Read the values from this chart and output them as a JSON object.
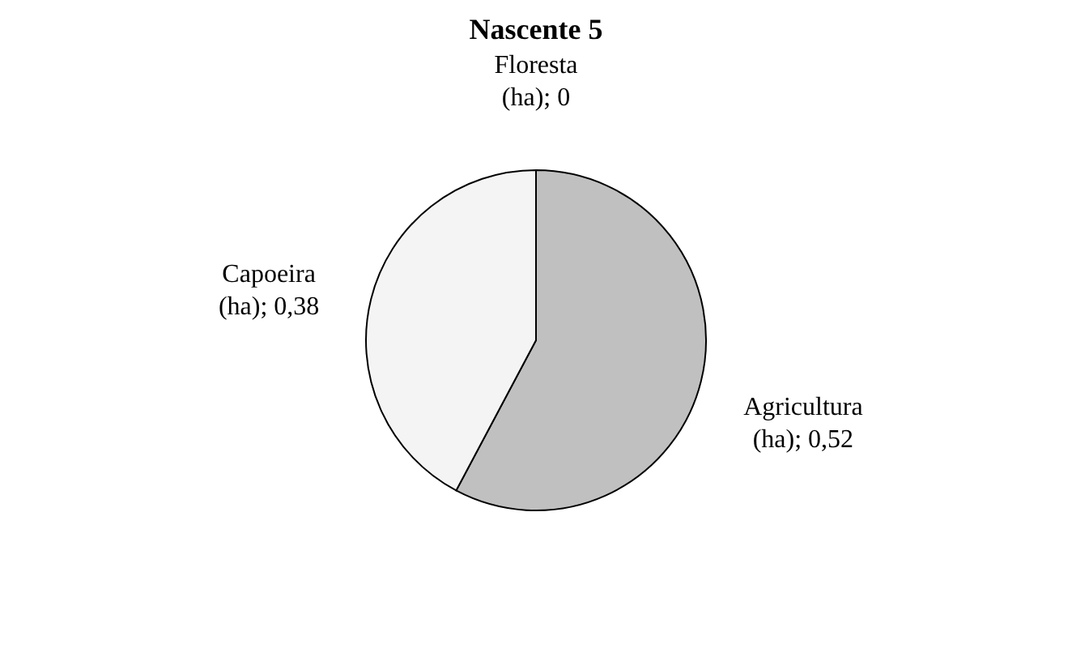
{
  "chart_data": {
    "type": "pie",
    "title": "Nascente 5",
    "categories": [
      "Agricultura",
      "Capoeira",
      "Floresta"
    ],
    "values": [
      0.52,
      0.38,
      0
    ],
    "value_labels": [
      "(ha); 0,52",
      "(ha); 0,38",
      "(ha); 0"
    ],
    "colors": [
      "#c0c0c0",
      "#f4f4f4",
      "#808080"
    ],
    "legend": false
  }
}
